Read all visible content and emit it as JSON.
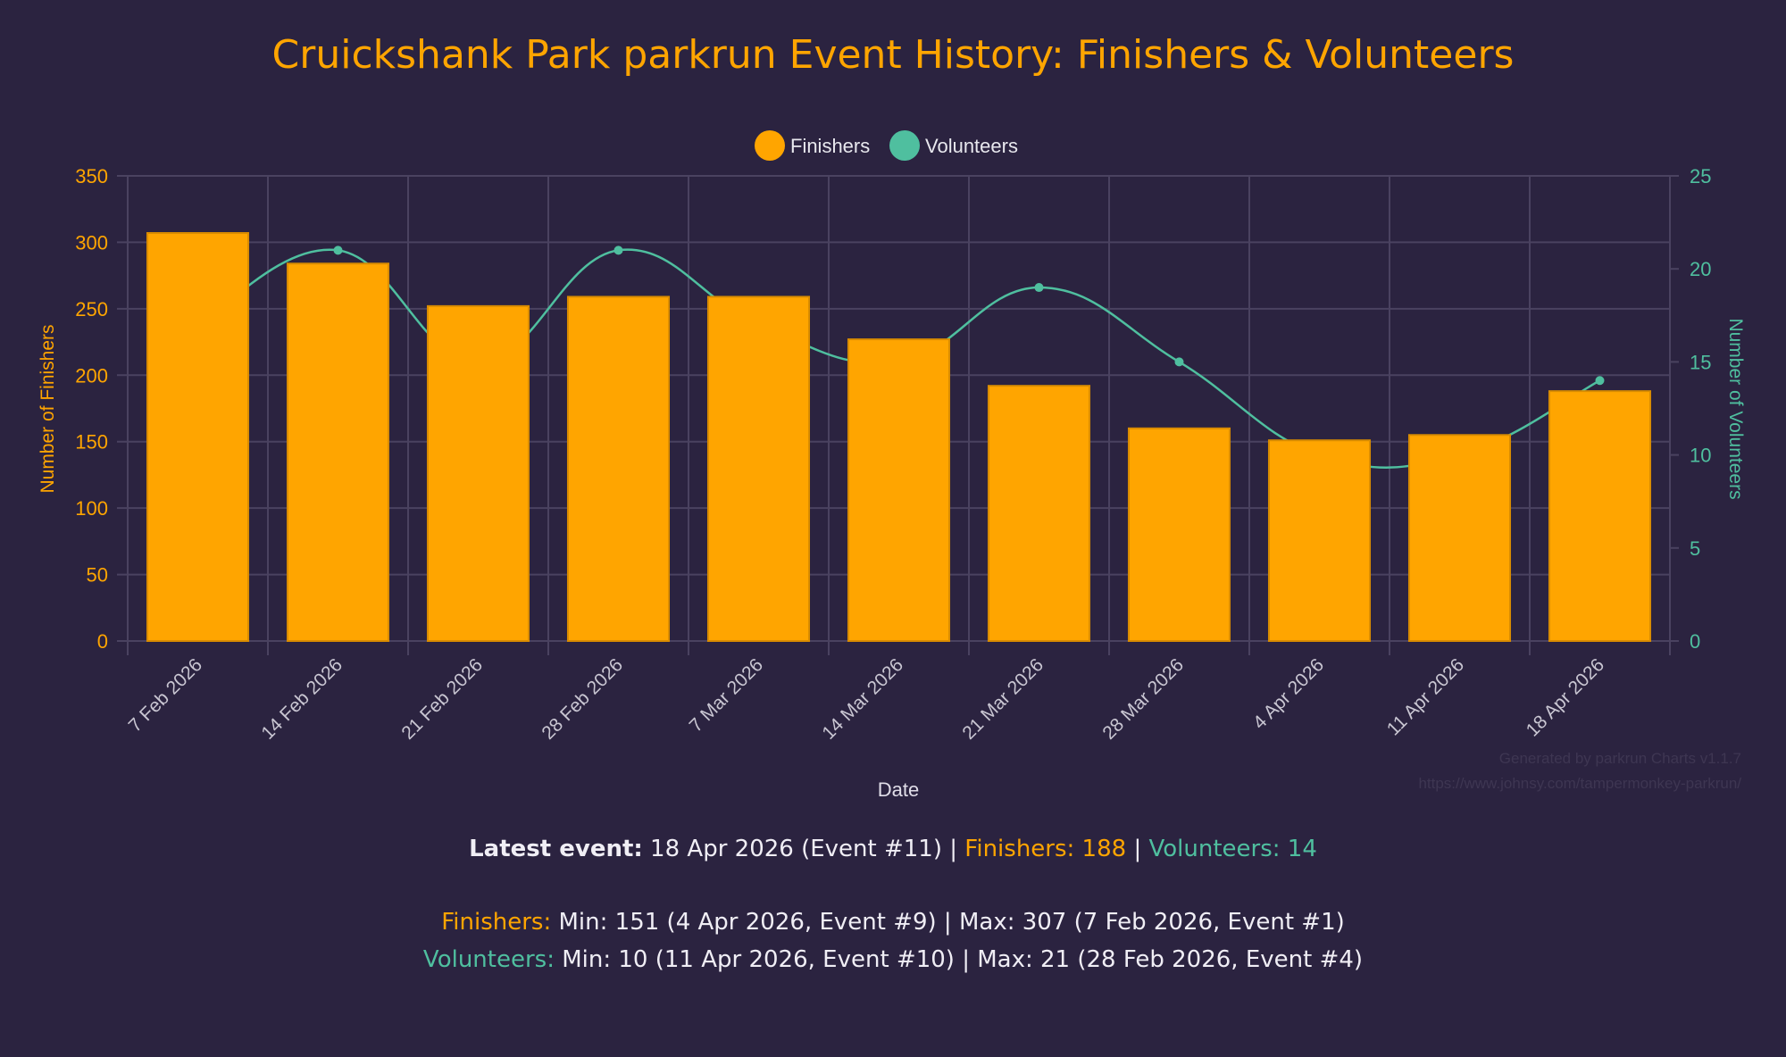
{
  "title": "Cruickshank Park parkrun Event History: Finishers & Volunteers",
  "colors": {
    "background": "#2b2340",
    "finishers": "#ffa500",
    "volunteers": "#4fbf9f",
    "grid": "#4a4260",
    "tick_x": "#c9c6d2"
  },
  "chart_data": {
    "type": "bar",
    "title": "Cruickshank Park parkrun Event History: Finishers & Volunteers",
    "xlabel": "Date",
    "ylabel": "Number of Finishers",
    "y2label": "Number of Volunteers",
    "categories": [
      "7 Feb 2026",
      "14 Feb 2026",
      "21 Feb 2026",
      "28 Feb 2026",
      "7 Mar 2026",
      "14 Mar 2026",
      "21 Mar 2026",
      "28 Mar 2026",
      "4 Apr 2026",
      "11 Apr 2026",
      "18 Apr 2026"
    ],
    "series": [
      {
        "name": "Finishers",
        "type": "bar",
        "axis": "left",
        "color": "#ffa500",
        "values": [
          307,
          284,
          252,
          259,
          259,
          227,
          192,
          160,
          151,
          155,
          188
        ]
      },
      {
        "name": "Volunteers",
        "type": "line",
        "axis": "right",
        "color": "#4fbf9f",
        "values": [
          17,
          21,
          15,
          21,
          17,
          15,
          19,
          15,
          10,
          10,
          14
        ]
      }
    ],
    "ylim": [
      0,
      350
    ],
    "y_ticks": [
      "0",
      "50",
      "100",
      "150",
      "200",
      "250",
      "300",
      "350"
    ],
    "y2lim": [
      0,
      25
    ],
    "y2_ticks": [
      "0",
      "5",
      "10",
      "15",
      "20",
      "25"
    ],
    "grid": true,
    "legend_position": "top"
  },
  "legend": [
    {
      "label": "Finishers",
      "color": "#ffa500"
    },
    {
      "label": "Volunteers",
      "color": "#4fbf9f"
    }
  ],
  "watermark": {
    "line1": "Generated by parkrun Charts v1.1.7",
    "line2": "https://www.johnsy.com/tampermonkey-parkrun/"
  },
  "stats": {
    "latest_label": "Latest event:",
    "latest_value": " 18 Apr 2026 (Event #11) | ",
    "latest_finishers": "Finishers: 188",
    "separator": " | ",
    "latest_volunteers": "Volunteers: 14",
    "finishers_label": "Finishers:",
    "finishers_value": " Min: 151 (4 Apr 2026, Event #9) | Max: 307 (7 Feb 2026, Event #1)",
    "volunteers_label": "Volunteers:",
    "volunteers_value": " Min: 10 (11 Apr 2026, Event #10) | Max: 21 (28 Feb 2026, Event #4)"
  }
}
